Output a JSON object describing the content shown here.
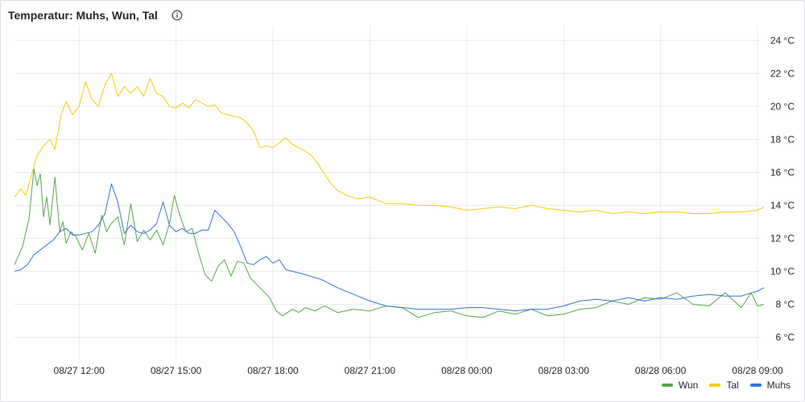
{
  "panel": {
    "title": "Temperatur: Muhs, Wun, Tal",
    "info_icon": "info-circle-icon"
  },
  "colors": {
    "Wun": "#56a64b",
    "Tal": "#f2cc0c",
    "Muhs": "#3274d9",
    "grid": "#e9eaec"
  },
  "legend": [
    "Wun",
    "Tal",
    "Muhs"
  ],
  "chart_data": {
    "type": "line",
    "title": "Temperatur: Muhs, Wun, Tal",
    "xlabel": "",
    "ylabel": "",
    "x_unit": "hours since 08/27 10:00",
    "xlim": [
      0,
      23.1
    ],
    "ylim": [
      5,
      24.5
    ],
    "x_ticks": [
      {
        "x": 2,
        "label": "08/27 12:00"
      },
      {
        "x": 5,
        "label": "08/27 15:00"
      },
      {
        "x": 8,
        "label": "08/27 18:00"
      },
      {
        "x": 11,
        "label": "08/27 21:00"
      },
      {
        "x": 14,
        "label": "08/28 00:00"
      },
      {
        "x": 17,
        "label": "08/28 03:00"
      },
      {
        "x": 20,
        "label": "08/28 06:00"
      },
      {
        "x": 23,
        "label": "08/28 09:00"
      }
    ],
    "y_ticks": [
      {
        "y": 6,
        "label": "6 °C"
      },
      {
        "y": 8,
        "label": "8 °C"
      },
      {
        "y": 10,
        "label": "10 °C"
      },
      {
        "y": 12,
        "label": "12 °C"
      },
      {
        "y": 14,
        "label": "14 °C"
      },
      {
        "y": 16,
        "label": "16 °C"
      },
      {
        "y": 18,
        "label": "18 °C"
      },
      {
        "y": 20,
        "label": "20 °C"
      },
      {
        "y": 22,
        "label": "22 °C"
      },
      {
        "y": 24,
        "label": "24 °C"
      }
    ],
    "grid": true,
    "legend_position": "bottom-right",
    "series": [
      {
        "name": "Wun",
        "x": [
          0,
          0.25,
          0.45,
          0.6,
          0.7,
          0.8,
          0.9,
          1.0,
          1.1,
          1.25,
          1.4,
          1.5,
          1.6,
          1.75,
          1.9,
          2.1,
          2.3,
          2.5,
          2.7,
          2.85,
          3.0,
          3.2,
          3.4,
          3.6,
          3.8,
          4.0,
          4.2,
          4.4,
          4.6,
          4.8,
          4.95,
          5.1,
          5.3,
          5.5,
          5.7,
          5.9,
          6.1,
          6.3,
          6.5,
          6.7,
          6.9,
          7.1,
          7.3,
          7.5,
          7.7,
          7.9,
          8.1,
          8.3,
          8.6,
          8.8,
          9.0,
          9.3,
          9.6,
          10.0,
          10.5,
          11.0,
          11.5,
          12.0,
          12.5,
          13.0,
          13.5,
          14.0,
          14.5,
          15.0,
          15.5,
          16.0,
          16.5,
          17.0,
          17.5,
          18.0,
          18.5,
          19.0,
          19.5,
          20.0,
          20.5,
          21.0,
          21.5,
          22.0,
          22.5,
          22.8,
          23.0,
          23.2
        ],
        "y": [
          10.4,
          11.5,
          13.2,
          16.2,
          15.2,
          15.9,
          13.3,
          14.5,
          12.8,
          15.7,
          12.4,
          13.0,
          11.7,
          12.4,
          12.1,
          11.3,
          12.3,
          11.1,
          13.4,
          12.4,
          12.9,
          13.3,
          11.6,
          14.1,
          11.8,
          12.5,
          11.9,
          12.5,
          11.6,
          12.9,
          14.6,
          13.5,
          12.4,
          12.6,
          11.1,
          9.8,
          9.4,
          10.3,
          10.7,
          9.7,
          10.6,
          10.5,
          9.6,
          9.2,
          8.8,
          8.4,
          7.6,
          7.3,
          7.7,
          7.5,
          7.8,
          7.6,
          7.9,
          7.5,
          7.7,
          7.6,
          7.9,
          7.8,
          7.2,
          7.5,
          7.6,
          7.3,
          7.2,
          7.6,
          7.4,
          7.7,
          7.3,
          7.4,
          7.7,
          7.8,
          8.2,
          8.0,
          8.4,
          8.3,
          8.7,
          8.0,
          7.9,
          8.7,
          7.8,
          8.7,
          7.9,
          8.0
        ]
      },
      {
        "name": "Tal",
        "x": [
          0,
          0.2,
          0.35,
          0.55,
          0.7,
          0.9,
          1.1,
          1.25,
          1.45,
          1.6,
          1.8,
          2.0,
          2.2,
          2.4,
          2.6,
          2.8,
          3.0,
          3.2,
          3.4,
          3.6,
          3.8,
          4.0,
          4.2,
          4.4,
          4.6,
          4.8,
          5.0,
          5.2,
          5.4,
          5.6,
          5.8,
          6.0,
          6.2,
          6.4,
          6.6,
          6.8,
          7.0,
          7.2,
          7.4,
          7.6,
          7.8,
          8.0,
          8.2,
          8.4,
          8.6,
          8.8,
          9.0,
          9.2,
          9.4,
          9.6,
          9.8,
          10.0,
          10.3,
          10.6,
          11.0,
          11.5,
          12.0,
          12.5,
          13.0,
          13.5,
          14.0,
          14.5,
          15.0,
          15.5,
          16.0,
          16.5,
          17.0,
          17.5,
          18.0,
          18.5,
          19.0,
          19.5,
          20.0,
          20.5,
          21.0,
          21.5,
          22.0,
          22.5,
          23.0,
          23.2
        ],
        "y": [
          14.5,
          15.0,
          14.6,
          16.0,
          17.0,
          17.6,
          18.0,
          17.4,
          19.5,
          20.3,
          19.5,
          20.0,
          21.5,
          20.4,
          20.0,
          21.3,
          22.0,
          20.6,
          21.2,
          20.8,
          21.2,
          20.6,
          21.7,
          20.8,
          20.6,
          20.0,
          19.9,
          20.2,
          19.9,
          20.4,
          20.2,
          20.0,
          20.1,
          19.6,
          19.5,
          19.4,
          19.3,
          19.0,
          18.5,
          17.5,
          17.6,
          17.5,
          17.8,
          18.1,
          17.7,
          17.5,
          17.3,
          17.0,
          16.5,
          15.9,
          15.3,
          14.9,
          14.6,
          14.4,
          14.5,
          14.1,
          14.1,
          14.0,
          14.0,
          13.9,
          13.7,
          13.8,
          13.9,
          13.8,
          14.0,
          13.8,
          13.7,
          13.6,
          13.7,
          13.5,
          13.6,
          13.5,
          13.6,
          13.6,
          13.5,
          13.5,
          13.6,
          13.6,
          13.7,
          13.9
        ]
      },
      {
        "name": "Muhs",
        "x": [
          0,
          0.2,
          0.4,
          0.6,
          0.8,
          1.0,
          1.2,
          1.4,
          1.6,
          1.8,
          2.0,
          2.2,
          2.4,
          2.6,
          2.8,
          3.0,
          3.2,
          3.4,
          3.6,
          3.8,
          4.0,
          4.2,
          4.4,
          4.6,
          4.8,
          5.0,
          5.2,
          5.4,
          5.6,
          5.8,
          6.0,
          6.2,
          6.4,
          6.6,
          6.8,
          7.0,
          7.2,
          7.4,
          7.6,
          7.8,
          8.0,
          8.2,
          8.4,
          8.6,
          9.0,
          9.5,
          10.0,
          10.5,
          11.0,
          11.5,
          12.0,
          12.5,
          13.0,
          13.5,
          14.0,
          14.5,
          15.0,
          15.5,
          16.0,
          16.5,
          17.0,
          17.5,
          18.0,
          18.5,
          19.0,
          19.5,
          20.0,
          20.5,
          21.0,
          21.5,
          22.0,
          22.5,
          23.0,
          23.2
        ],
        "y": [
          10.0,
          10.1,
          10.4,
          11.0,
          11.3,
          11.6,
          11.9,
          12.4,
          12.6,
          12.2,
          12.2,
          12.3,
          12.4,
          12.8,
          13.5,
          15.3,
          14.2,
          12.3,
          12.8,
          12.4,
          12.3,
          12.5,
          12.9,
          14.2,
          12.8,
          12.4,
          12.6,
          12.3,
          12.3,
          12.5,
          12.5,
          13.7,
          13.3,
          12.9,
          12.4,
          11.5,
          10.5,
          10.4,
          10.7,
          10.9,
          10.5,
          10.7,
          10.1,
          10.0,
          9.8,
          9.5,
          9.0,
          8.6,
          8.2,
          7.9,
          7.8,
          7.7,
          7.7,
          7.7,
          7.8,
          7.8,
          7.7,
          7.6,
          7.7,
          7.7,
          7.9,
          8.2,
          8.3,
          8.2,
          8.4,
          8.2,
          8.4,
          8.3,
          8.5,
          8.6,
          8.5,
          8.5,
          8.8,
          9.0
        ]
      }
    ]
  }
}
